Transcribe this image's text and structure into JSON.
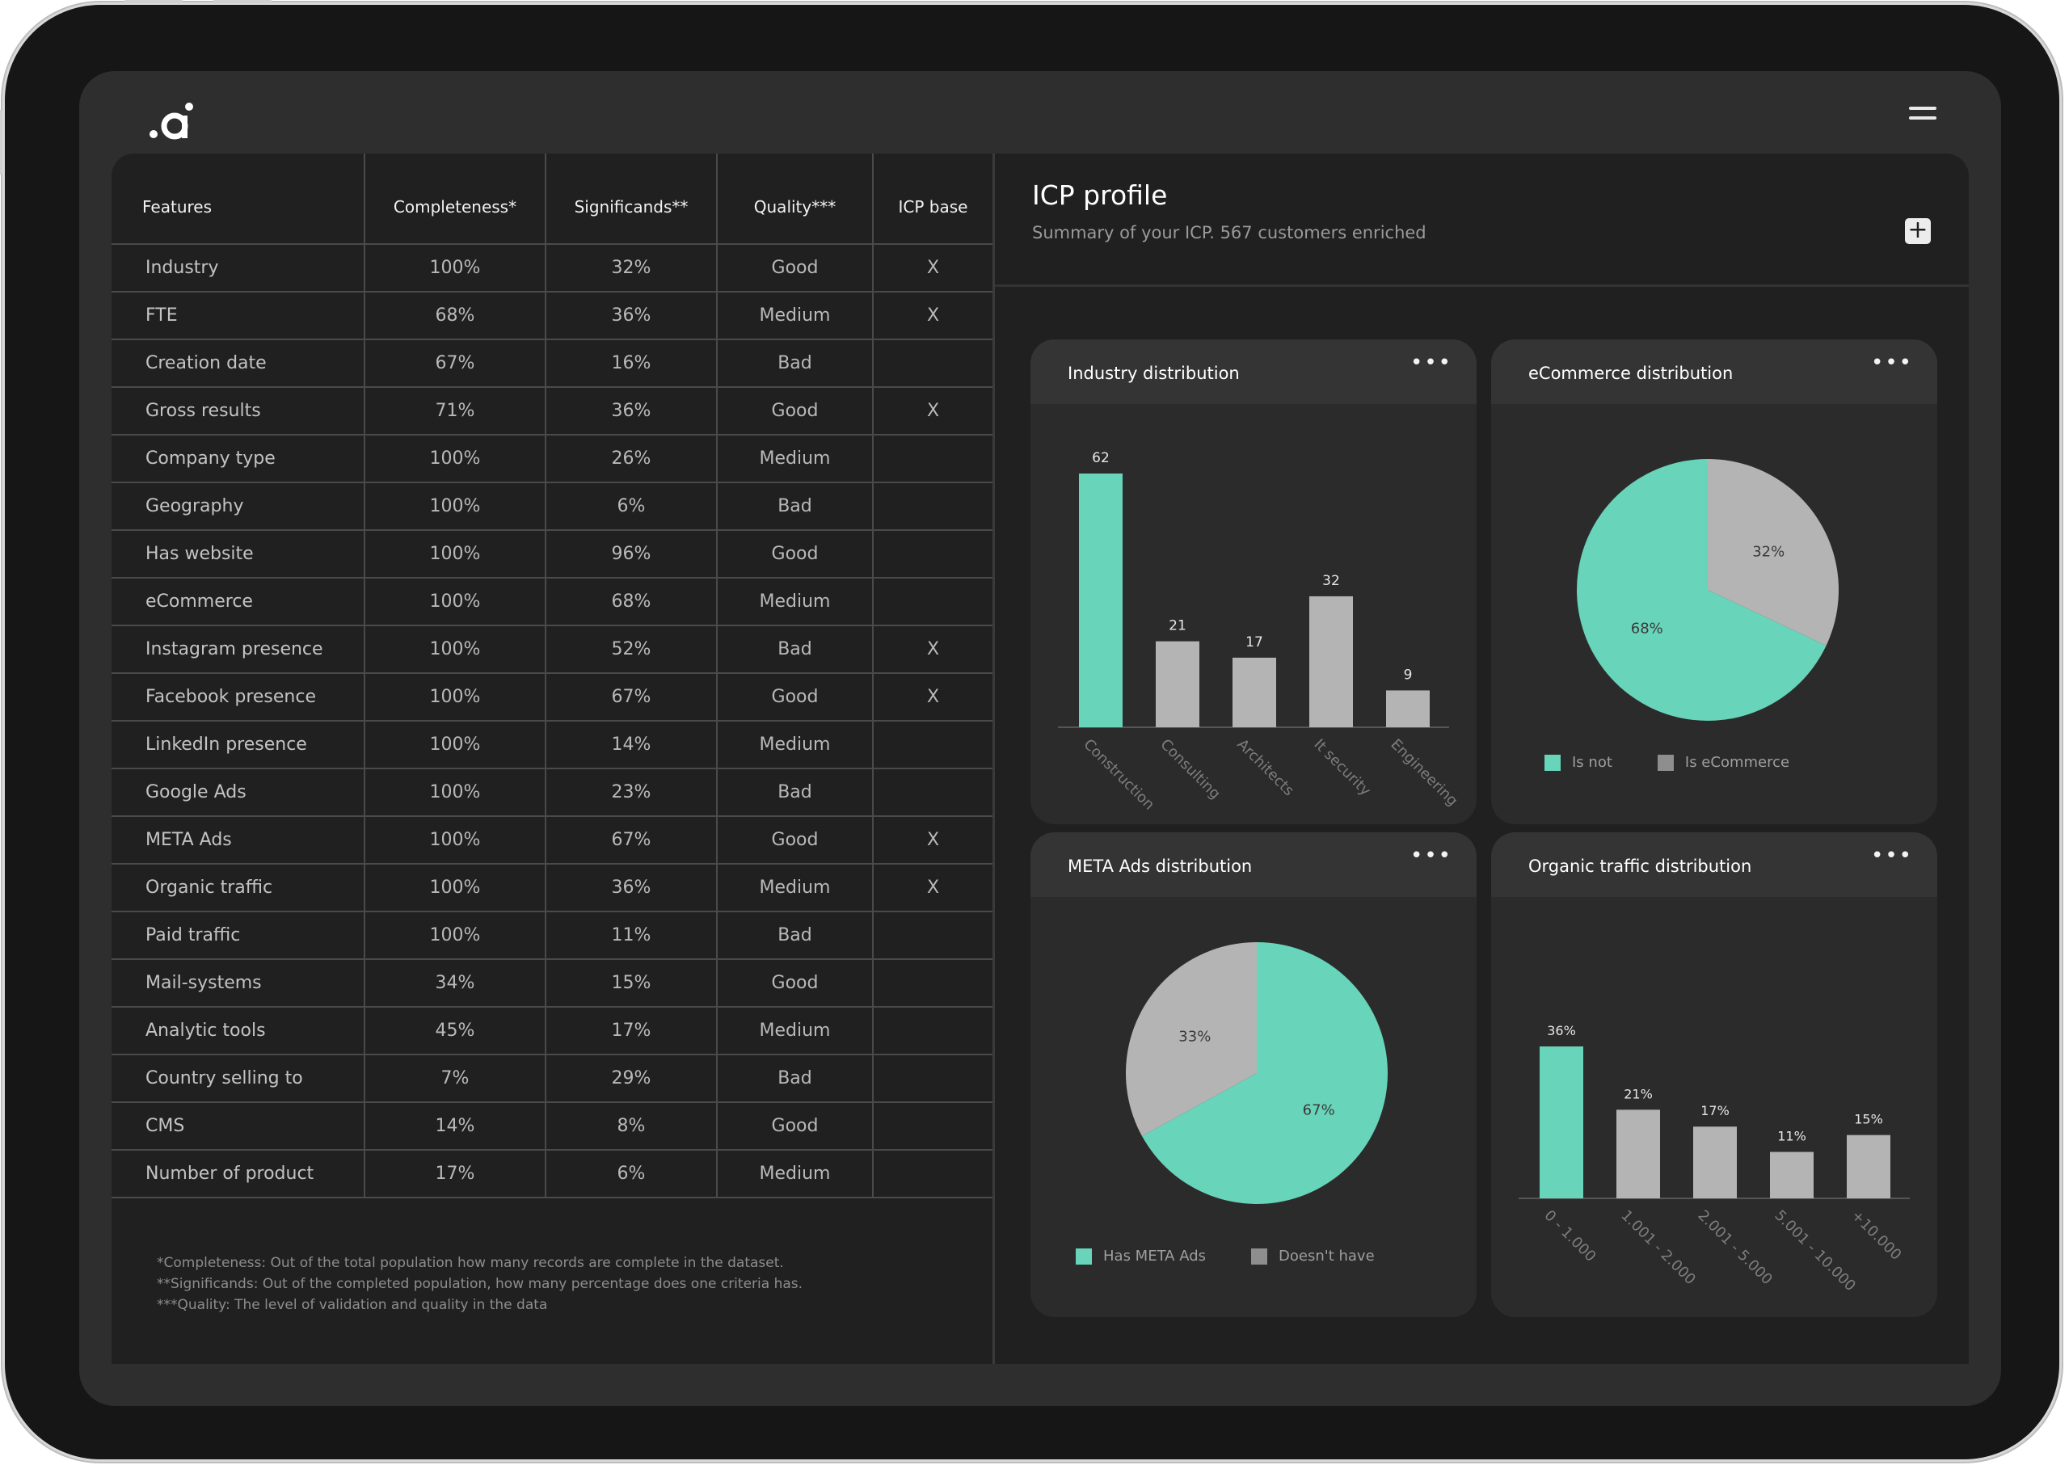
{
  "colors": {
    "accent": "#68d4b9",
    "neutral": "#b4b4b4",
    "background": "#202020"
  },
  "header": {
    "logo_text": ".ai",
    "menu_icon": "hamburger-menu-icon"
  },
  "table": {
    "headers": {
      "feature": "Features",
      "completeness": "Completeness*",
      "significands": "Significands**",
      "quality": "Quality***",
      "icp": "ICP base"
    },
    "rows": [
      {
        "feature": "Industry",
        "completeness": "100%",
        "significands": "32%",
        "quality": "Good",
        "icp": "X"
      },
      {
        "feature": "FTE",
        "completeness": "68%",
        "significands": "36%",
        "quality": "Medium",
        "icp": "X"
      },
      {
        "feature": "Creation date",
        "completeness": "67%",
        "significands": "16%",
        "quality": "Bad",
        "icp": ""
      },
      {
        "feature": "Gross results",
        "completeness": "71%",
        "significands": "36%",
        "quality": "Good",
        "icp": "X"
      },
      {
        "feature": "Company type",
        "completeness": "100%",
        "significands": "26%",
        "quality": "Medium",
        "icp": ""
      },
      {
        "feature": "Geography",
        "completeness": "100%",
        "significands": "6%",
        "quality": "Bad",
        "icp": ""
      },
      {
        "feature": "Has website",
        "completeness": "100%",
        "significands": "96%",
        "quality": "Good",
        "icp": ""
      },
      {
        "feature": "eCommerce",
        "completeness": "100%",
        "significands": "68%",
        "quality": "Medium",
        "icp": ""
      },
      {
        "feature": "Instagram presence",
        "completeness": "100%",
        "significands": "52%",
        "quality": "Bad",
        "icp": "X"
      },
      {
        "feature": "Facebook presence",
        "completeness": "100%",
        "significands": "67%",
        "quality": "Good",
        "icp": "X"
      },
      {
        "feature": "LinkedIn presence",
        "completeness": "100%",
        "significands": "14%",
        "quality": "Medium",
        "icp": ""
      },
      {
        "feature": "Google Ads",
        "completeness": "100%",
        "significands": "23%",
        "quality": "Bad",
        "icp": ""
      },
      {
        "feature": "META Ads",
        "completeness": "100%",
        "significands": "67%",
        "quality": "Good",
        "icp": "X"
      },
      {
        "feature": "Organic traffic",
        "completeness": "100%",
        "significands": "36%",
        "quality": "Medium",
        "icp": "X"
      },
      {
        "feature": "Paid traffic",
        "completeness": "100%",
        "significands": "11%",
        "quality": "Bad",
        "icp": ""
      },
      {
        "feature": "Mail-systems",
        "completeness": "34%",
        "significands": "15%",
        "quality": "Good",
        "icp": ""
      },
      {
        "feature": "Analytic tools",
        "completeness": "45%",
        "significands": "17%",
        "quality": "Medium",
        "icp": ""
      },
      {
        "feature": "Country selling to",
        "completeness": "7%",
        "significands": "29%",
        "quality": "Bad",
        "icp": ""
      },
      {
        "feature": "CMS",
        "completeness": "14%",
        "significands": "8%",
        "quality": "Good",
        "icp": ""
      },
      {
        "feature": "Number of product",
        "completeness": "17%",
        "significands": "6%",
        "quality": "Medium",
        "icp": ""
      }
    ],
    "footnotes": [
      "*Completeness: Out of the total population how many records are complete in the dataset.",
      "**Significands: Out of the completed population, how many percentage does one criteria has.",
      "***Quality: The level of validation and quality in the data"
    ]
  },
  "profile": {
    "title": "ICP profile",
    "subtitle": "Summary of your ICP.  567 customers enriched",
    "add_icon": "plus-icon",
    "more_icon": "more-dots-icon"
  },
  "chart_data": [
    {
      "id": "industry",
      "type": "bar",
      "title": "Industry distribution",
      "categories": [
        "Construction",
        "Consulting",
        "Architects",
        "It security",
        "Engineering"
      ],
      "values": [
        62,
        21,
        17,
        32,
        9
      ],
      "labels": [
        "62",
        "21",
        "17",
        "32",
        "9"
      ],
      "highlight_index": 0,
      "ylim": [
        0,
        62
      ]
    },
    {
      "id": "ecommerce",
      "type": "pie",
      "title": "eCommerce distribution",
      "slices": [
        {
          "label": "Is not",
          "value": 68,
          "text": "68%",
          "color": "#68d4b9"
        },
        {
          "label": "Is eCommerce",
          "value": 32,
          "text": "32%",
          "color": "#b4b4b4"
        }
      ],
      "legend_position": "bottom"
    },
    {
      "id": "meta",
      "type": "pie",
      "title": "META Ads distribution",
      "slices": [
        {
          "label": "Has META Ads",
          "value": 67,
          "text": "67%",
          "color": "#68d4b9"
        },
        {
          "label": "Doesn't have",
          "value": 33,
          "text": "33%",
          "color": "#b4b4b4"
        }
      ],
      "legend_position": "bottom"
    },
    {
      "id": "organic",
      "type": "bar",
      "title": "Organic traffic distribution",
      "categories": [
        "0 - 1.000",
        "1.001 - 2.000",
        "2.001 - 5.000",
        "5.001 - 10.000",
        "+10.000"
      ],
      "values": [
        36,
        21,
        17,
        11,
        15
      ],
      "labels": [
        "36%",
        "21%",
        "17%",
        "11%",
        "15%"
      ],
      "highlight_index": 0,
      "ylim": [
        0,
        36
      ]
    }
  ]
}
